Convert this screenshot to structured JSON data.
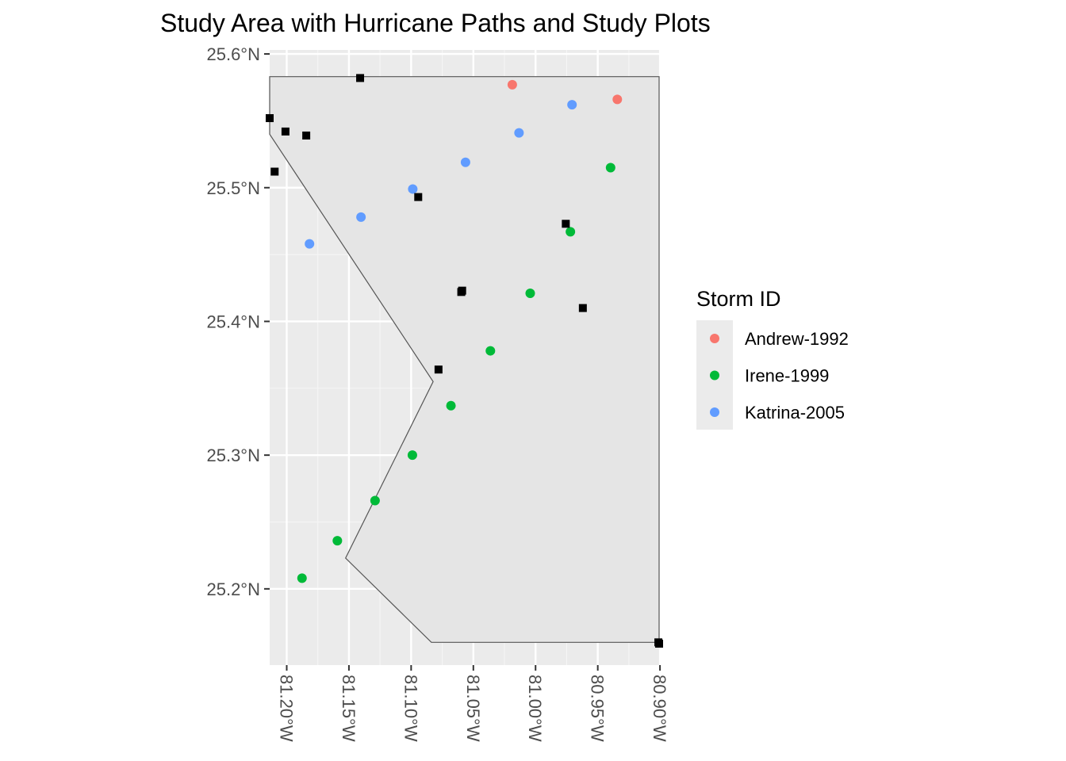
{
  "chart_data": {
    "type": "scatter",
    "title": "Study Area with Hurricane Paths and Study Plots",
    "xlabel": "",
    "ylabel": "",
    "xlim": [
      -81.2137,
      -80.9007
    ],
    "ylim": [
      25.143,
      25.603
    ],
    "x_ticks": [
      {
        "value": -81.2,
        "label": "81.20°W"
      },
      {
        "value": -81.15,
        "label": "81.15°W"
      },
      {
        "value": -81.1,
        "label": "81.10°W"
      },
      {
        "value": -81.05,
        "label": "81.05°W"
      },
      {
        "value": -81.0,
        "label": "81.00°W"
      },
      {
        "value": -80.95,
        "label": "80.95°W"
      },
      {
        "value": -80.9,
        "label": "80.90°W"
      }
    ],
    "y_ticks": [
      {
        "value": 25.2,
        "label": "25.2°N"
      },
      {
        "value": 25.3,
        "label": "25.3°N"
      },
      {
        "value": 25.4,
        "label": "25.4°N"
      },
      {
        "value": 25.5,
        "label": "25.5°N"
      },
      {
        "value": 25.6,
        "label": "25.6°N"
      }
    ],
    "grid": true,
    "study_area": {
      "fill": "#e5e5e5",
      "stroke": "#555555",
      "vertices": [
        [
          -81.2137,
          25.583
        ],
        [
          -80.9007,
          25.583
        ],
        [
          -80.9007,
          25.16
        ],
        [
          -81.0837,
          25.16
        ],
        [
          -81.1527,
          25.223
        ],
        [
          -81.0823,
          25.355
        ],
        [
          -81.2137,
          25.54
        ]
      ]
    },
    "series": [
      {
        "name": "Andrew-1992",
        "color": "#F8766D",
        "points": [
          {
            "x": -81.0187,
            "y": 25.577
          },
          {
            "x": -80.9343,
            "y": 25.566
          }
        ]
      },
      {
        "name": "Irene-1999",
        "color": "#00BA38",
        "points": [
          {
            "x": -81.1877,
            "y": 25.208
          },
          {
            "x": -81.1593,
            "y": 25.236
          },
          {
            "x": -81.129,
            "y": 25.266
          },
          {
            "x": -81.099,
            "y": 25.3
          },
          {
            "x": -81.068,
            "y": 25.337
          },
          {
            "x": -81.0363,
            "y": 25.378
          },
          {
            "x": -81.0043,
            "y": 25.421
          },
          {
            "x": -80.972,
            "y": 25.467
          },
          {
            "x": -80.9397,
            "y": 25.515
          }
        ]
      },
      {
        "name": "Katrina-2005",
        "color": "#619CFF",
        "points": [
          {
            "x": -81.1817,
            "y": 25.458
          },
          {
            "x": -81.1403,
            "y": 25.478
          },
          {
            "x": -81.0987,
            "y": 25.499
          },
          {
            "x": -81.0563,
            "y": 25.519
          },
          {
            "x": -81.0133,
            "y": 25.541
          },
          {
            "x": -80.9707,
            "y": 25.562
          }
        ]
      }
    ],
    "study_plots": {
      "color": "#000000",
      "marker": "square",
      "points": [
        {
          "x": -81.2137,
          "y": 25.552
        },
        {
          "x": -81.201,
          "y": 25.542
        },
        {
          "x": -81.1843,
          "y": 25.539
        },
        {
          "x": -81.2097,
          "y": 25.512
        },
        {
          "x": -81.141,
          "y": 25.582
        },
        {
          "x": -81.0943,
          "y": 25.493
        },
        {
          "x": -81.078,
          "y": 25.364
        },
        {
          "x": -81.0597,
          "y": 25.422
        },
        {
          "x": -81.059,
          "y": 25.423
        },
        {
          "x": -80.9757,
          "y": 25.473
        },
        {
          "x": -80.962,
          "y": 25.41
        },
        {
          "x": -80.9007,
          "y": 25.159
        },
        {
          "x": -80.9013,
          "y": 25.16
        }
      ]
    },
    "legend": {
      "title": "Storm ID",
      "placement": "right",
      "items": [
        "Andrew-1992",
        "Irene-1999",
        "Katrina-2005"
      ]
    }
  }
}
